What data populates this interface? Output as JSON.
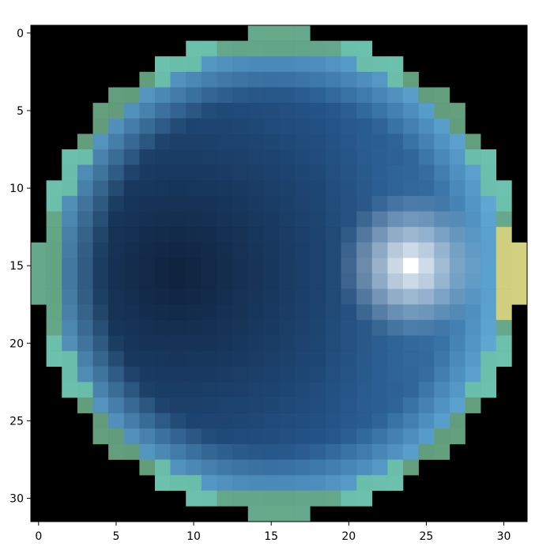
{
  "chart_data": {
    "type": "heatmap",
    "title": "",
    "xlabel": "",
    "ylabel": "",
    "grid": false,
    "legend": "none",
    "shape": [
      32,
      32
    ],
    "x_ticks": [
      0,
      5,
      10,
      15,
      20,
      25,
      30
    ],
    "y_ticks": [
      0,
      5,
      10,
      15,
      20,
      25,
      30
    ],
    "x_tick_labels": [
      "0",
      "5",
      "10",
      "15",
      "20",
      "25",
      "30"
    ],
    "y_tick_labels": [
      "0",
      "5",
      "10",
      "15",
      "20",
      "25",
      "30"
    ],
    "xlim": [
      -0.5,
      31.5
    ],
    "ylim": [
      31.5,
      -0.5
    ],
    "description_sphere": {
      "center": [
        15.5,
        15.5
      ],
      "radius": 15.6,
      "highlight_center": [
        24,
        15
      ],
      "background_color": "#000000"
    },
    "colors": {
      "background": "#000000",
      "edge_green": "#5e8a55",
      "edge_teal": "#6cc3a4",
      "edge_yellow": "#e3d46e",
      "rim_light_blue": "#78c8f0",
      "body_blue": "#26588e",
      "dark_core": "#0f223d",
      "highlight_white": "#ffffff"
    }
  }
}
